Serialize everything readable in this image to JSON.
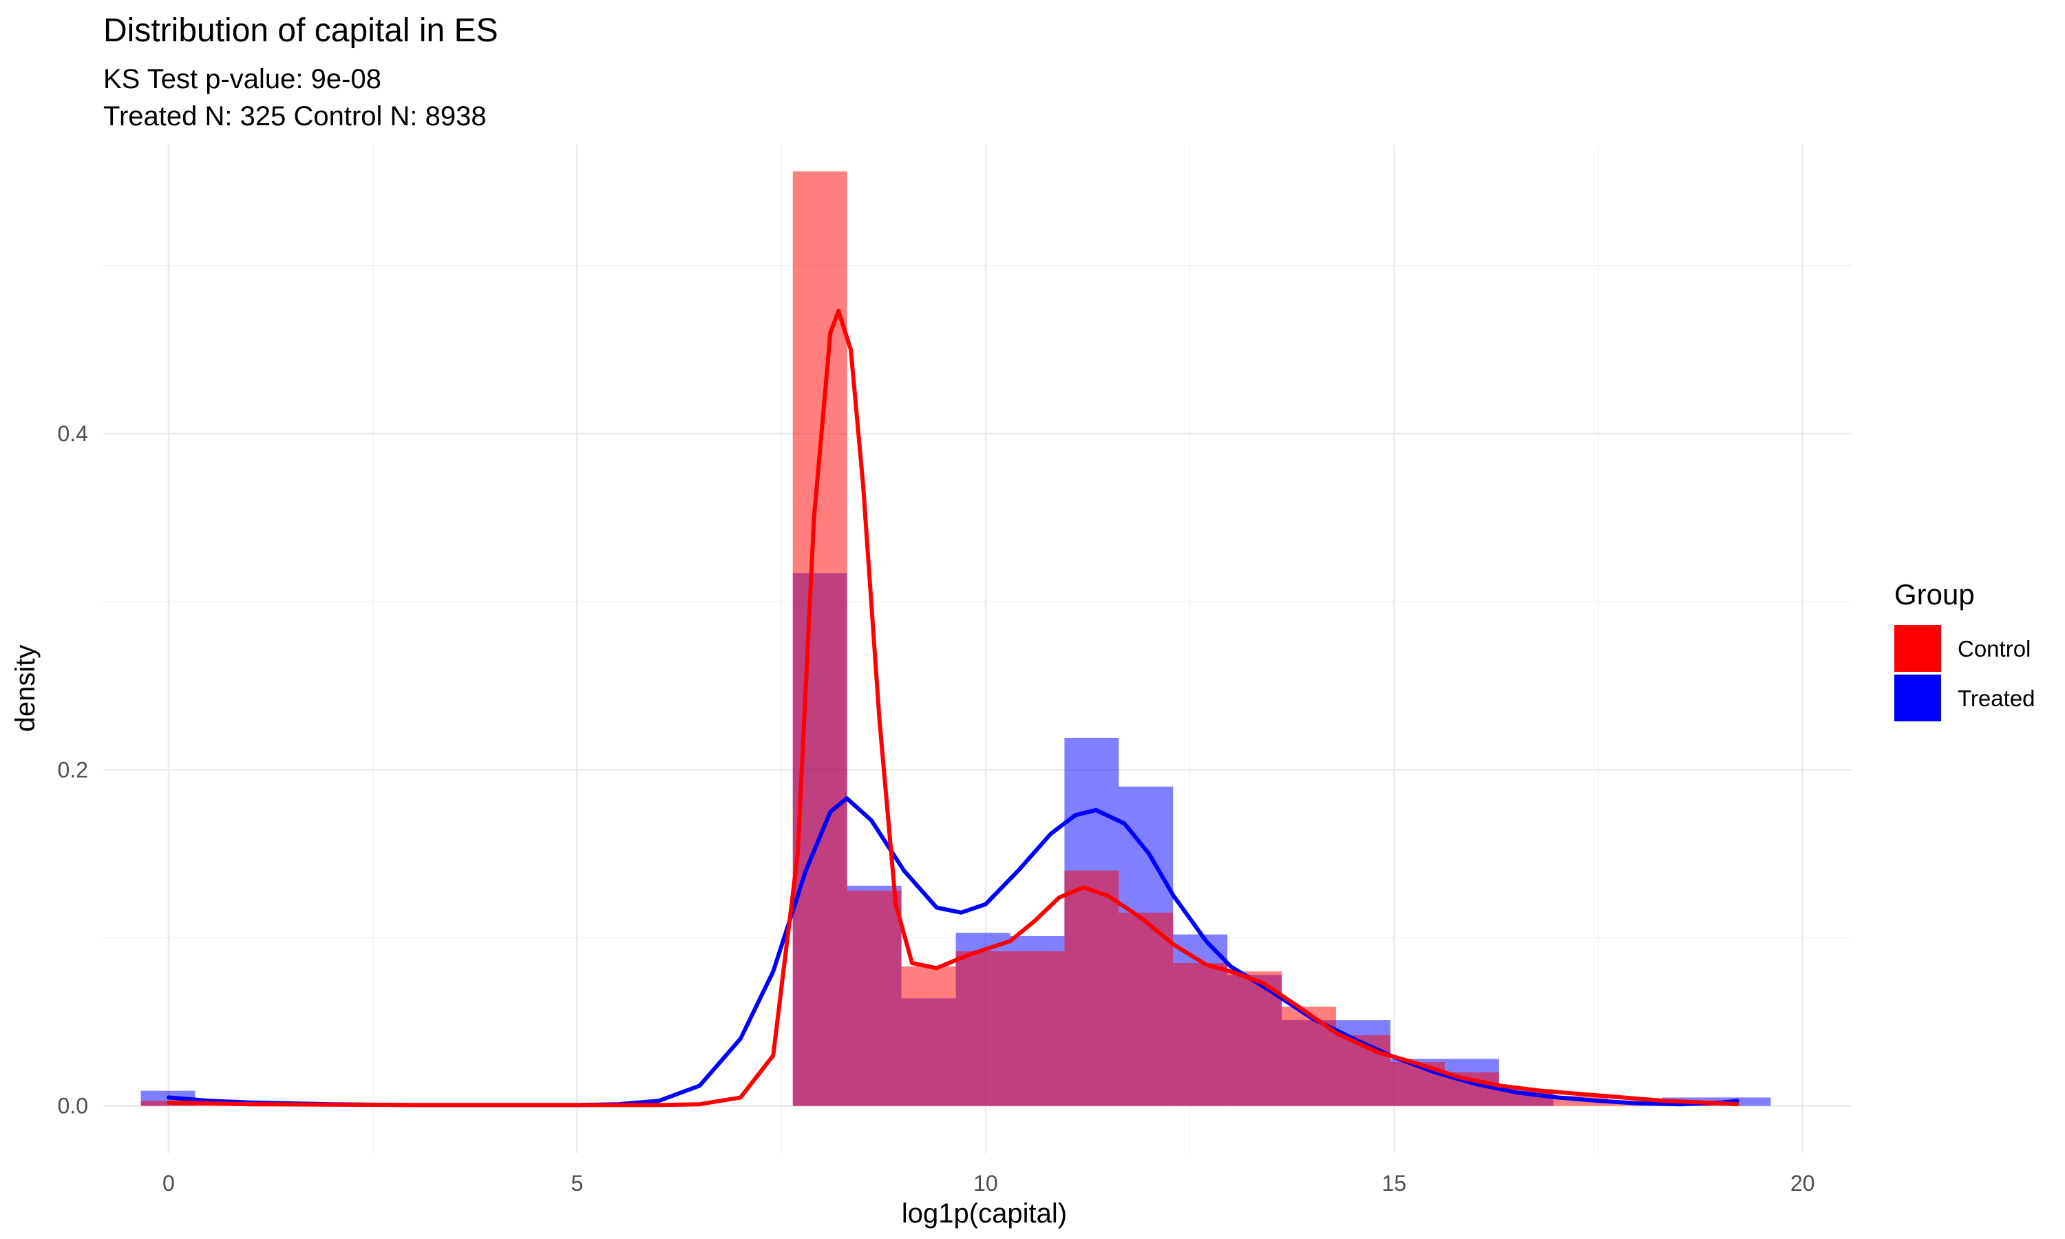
{
  "chart_data": {
    "type": "histogram",
    "title": "Distribution of capital in ES",
    "subtitle_lines": [
      "KS Test p-value: 9e-08",
      "Treated N: 325 Control N: 8938"
    ],
    "xlabel": "log1p(capital)",
    "ylabel": "density",
    "xlim": [
      -0.8,
      20.6
    ],
    "ylim": [
      -0.028,
      0.572
    ],
    "x_ticks": [
      0,
      5,
      10,
      15,
      20
    ],
    "x_tick_labels": [
      "0",
      "5",
      "10",
      "15",
      "20"
    ],
    "y_ticks": [
      0.0,
      0.2,
      0.4
    ],
    "y_tick_labels": [
      "0.0",
      "0.2",
      "0.4"
    ],
    "grid": true,
    "legend": {
      "title": "Group",
      "position": "right",
      "entries": [
        {
          "name": "Control",
          "color": "#ff0000"
        },
        {
          "name": "Treated",
          "color": "#0000ff"
        }
      ]
    },
    "bin_width": 0.665,
    "series": [
      {
        "name": "Treated",
        "color": "#0000ff",
        "bars": [
          {
            "x0": -0.34,
            "density": 0.009
          },
          {
            "x0": 7.64,
            "density": 0.317
          },
          {
            "x0": 8.305,
            "density": 0.131
          },
          {
            "x0": 8.97,
            "density": 0.064
          },
          {
            "x0": 9.635,
            "density": 0.103
          },
          {
            "x0": 10.3,
            "density": 0.101
          },
          {
            "x0": 10.965,
            "density": 0.219
          },
          {
            "x0": 11.63,
            "density": 0.19
          },
          {
            "x0": 12.295,
            "density": 0.102
          },
          {
            "x0": 12.96,
            "density": 0.078
          },
          {
            "x0": 13.625,
            "density": 0.051
          },
          {
            "x0": 14.29,
            "density": 0.051
          },
          {
            "x0": 14.955,
            "density": 0.028
          },
          {
            "x0": 15.62,
            "density": 0.028
          },
          {
            "x0": 16.285,
            "density": 0.009
          },
          {
            "x0": 18.28,
            "density": 0.005
          },
          {
            "x0": 18.945,
            "density": 0.005
          }
        ],
        "density_curve": [
          [
            0,
            0.005
          ],
          [
            0.5,
            0.003
          ],
          [
            1,
            0.002
          ],
          [
            2,
            0.001
          ],
          [
            3,
            0.0005
          ],
          [
            4,
            0.0005
          ],
          [
            5,
            0.0005
          ],
          [
            5.5,
            0.001
          ],
          [
            6,
            0.003
          ],
          [
            6.5,
            0.012
          ],
          [
            7,
            0.04
          ],
          [
            7.4,
            0.08
          ],
          [
            7.8,
            0.14
          ],
          [
            8.1,
            0.175
          ],
          [
            8.3,
            0.183
          ],
          [
            8.6,
            0.17
          ],
          [
            9.0,
            0.14
          ],
          [
            9.4,
            0.118
          ],
          [
            9.7,
            0.115
          ],
          [
            10.0,
            0.12
          ],
          [
            10.4,
            0.14
          ],
          [
            10.8,
            0.162
          ],
          [
            11.1,
            0.173
          ],
          [
            11.35,
            0.176
          ],
          [
            11.7,
            0.168
          ],
          [
            12.0,
            0.15
          ],
          [
            12.3,
            0.125
          ],
          [
            12.7,
            0.098
          ],
          [
            13.0,
            0.083
          ],
          [
            13.5,
            0.068
          ],
          [
            14.0,
            0.052
          ],
          [
            14.5,
            0.04
          ],
          [
            15.0,
            0.029
          ],
          [
            15.5,
            0.02
          ],
          [
            16.0,
            0.013
          ],
          [
            16.5,
            0.008
          ],
          [
            17.0,
            0.005
          ],
          [
            17.5,
            0.003
          ],
          [
            18.0,
            0.0015
          ],
          [
            18.5,
            0.001
          ],
          [
            19.0,
            0.002
          ],
          [
            19.2,
            0.003
          ]
        ]
      },
      {
        "name": "Control",
        "color": "#ff0000",
        "bars": [
          {
            "x0": -0.34,
            "density": 0.003
          },
          {
            "x0": 0.325,
            "density": 0.002
          },
          {
            "x0": 0.99,
            "density": 0.001
          },
          {
            "x0": 1.655,
            "density": 0.001
          },
          {
            "x0": 2.32,
            "density": 0.001
          },
          {
            "x0": 7.64,
            "density": 0.556
          },
          {
            "x0": 8.305,
            "density": 0.128
          },
          {
            "x0": 8.97,
            "density": 0.083
          },
          {
            "x0": 9.635,
            "density": 0.092
          },
          {
            "x0": 10.3,
            "density": 0.092
          },
          {
            "x0": 10.965,
            "density": 0.14
          },
          {
            "x0": 11.63,
            "density": 0.115
          },
          {
            "x0": 12.295,
            "density": 0.085
          },
          {
            "x0": 12.96,
            "density": 0.08
          },
          {
            "x0": 13.625,
            "density": 0.059
          },
          {
            "x0": 14.29,
            "density": 0.042
          },
          {
            "x0": 14.955,
            "density": 0.026
          },
          {
            "x0": 15.62,
            "density": 0.02
          },
          {
            "x0": 16.285,
            "density": 0.01
          },
          {
            "x0": 16.95,
            "density": 0.006
          },
          {
            "x0": 17.615,
            "density": 0.003
          },
          {
            "x0": 18.28,
            "density": 0.002
          }
        ],
        "density_curve": [
          [
            0,
            0.002
          ],
          [
            0.5,
            0.0015
          ],
          [
            1,
            0.001
          ],
          [
            2,
            0.0008
          ],
          [
            3,
            0.0005
          ],
          [
            4,
            0.0005
          ],
          [
            5,
            0.0005
          ],
          [
            6,
            0.0005
          ],
          [
            6.5,
            0.001
          ],
          [
            7.0,
            0.005
          ],
          [
            7.4,
            0.03
          ],
          [
            7.7,
            0.15
          ],
          [
            7.9,
            0.35
          ],
          [
            8.1,
            0.46
          ],
          [
            8.2,
            0.473
          ],
          [
            8.35,
            0.45
          ],
          [
            8.5,
            0.37
          ],
          [
            8.7,
            0.23
          ],
          [
            8.9,
            0.12
          ],
          [
            9.1,
            0.085
          ],
          [
            9.4,
            0.082
          ],
          [
            9.8,
            0.09
          ],
          [
            10.3,
            0.098
          ],
          [
            10.6,
            0.11
          ],
          [
            10.9,
            0.124
          ],
          [
            11.2,
            0.13
          ],
          [
            11.5,
            0.125
          ],
          [
            11.9,
            0.112
          ],
          [
            12.3,
            0.096
          ],
          [
            12.7,
            0.084
          ],
          [
            13.0,
            0.08
          ],
          [
            13.4,
            0.073
          ],
          [
            13.8,
            0.06
          ],
          [
            14.3,
            0.043
          ],
          [
            14.8,
            0.032
          ],
          [
            15.3,
            0.025
          ],
          [
            15.8,
            0.017
          ],
          [
            16.3,
            0.012
          ],
          [
            16.8,
            0.009
          ],
          [
            17.3,
            0.007
          ],
          [
            17.8,
            0.005
          ],
          [
            18.3,
            0.003
          ],
          [
            18.8,
            0.002
          ],
          [
            19.2,
            0.001
          ]
        ]
      }
    ]
  }
}
